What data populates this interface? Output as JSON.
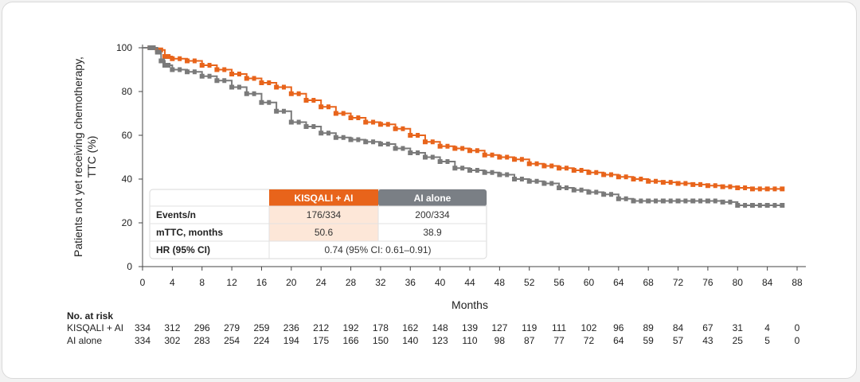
{
  "chart_data": {
    "type": "line",
    "title": "",
    "xlabel": "Months",
    "ylabel_lines": [
      "Patients not yet receiving chemotherapy,",
      "TTC (%)"
    ],
    "xlim": [
      0,
      88
    ],
    "ylim": [
      0,
      100
    ],
    "x_ticks": [
      0,
      4,
      8,
      12,
      16,
      20,
      24,
      28,
      32,
      36,
      40,
      44,
      48,
      52,
      56,
      60,
      64,
      68,
      72,
      76,
      80,
      84,
      88
    ],
    "y_ticks": [
      0,
      20,
      40,
      60,
      80,
      100
    ],
    "series": [
      {
        "name": "KISQALI + AI",
        "color": "#e8641b",
        "x": [
          0,
          1,
          2,
          3,
          4,
          6,
          8,
          10,
          12,
          14,
          16,
          18,
          20,
          22,
          24,
          26,
          28,
          30,
          32,
          34,
          36,
          38,
          40,
          42,
          44,
          46,
          48,
          50,
          52,
          54,
          56,
          58,
          60,
          62,
          64,
          66,
          68,
          70,
          72,
          74,
          76,
          78,
          80,
          82,
          84,
          86
        ],
        "y": [
          100,
          100,
          99,
          96,
          95,
          94,
          92,
          90,
          88,
          86,
          84,
          82,
          79,
          76,
          73,
          70,
          68,
          66,
          65,
          63,
          60,
          57,
          55,
          54,
          53,
          51,
          50,
          49,
          47,
          46,
          45,
          44,
          43,
          42,
          41,
          40,
          39,
          38.5,
          38,
          37.5,
          37,
          36.5,
          36,
          35.5,
          35.5,
          35.5
        ]
      },
      {
        "name": "AI alone",
        "color": "#7a7a7a",
        "x": [
          0,
          1,
          2,
          2.5,
          3,
          4,
          6,
          8,
          10,
          12,
          14,
          16,
          18,
          20,
          22,
          24,
          26,
          28,
          30,
          32,
          34,
          36,
          38,
          40,
          42,
          44,
          46,
          48,
          50,
          52,
          54,
          56,
          58,
          60,
          62,
          64,
          66,
          68,
          70,
          72,
          74,
          76,
          78,
          80,
          82,
          84,
          86
        ],
        "y": [
          100,
          100,
          98,
          94,
          92,
          90,
          89,
          87,
          85,
          82,
          79,
          75,
          71,
          66,
          64,
          61,
          59,
          58,
          57,
          56,
          54,
          52,
          50,
          48,
          45,
          44,
          43,
          42,
          40,
          39,
          38,
          36,
          35,
          34,
          33,
          31,
          30,
          30,
          30,
          30,
          30,
          30,
          29.5,
          28,
          28,
          28,
          28
        ]
      }
    ]
  },
  "summary_table": {
    "headers": [
      "KISQALI + AI",
      "AI alone"
    ],
    "rows": [
      {
        "label": "Events/n",
        "kisqali": "176/334",
        "ai": "200/334"
      },
      {
        "label": "mTTC, months",
        "kisqali": "50.6",
        "ai": "38.9"
      },
      {
        "label": "HR (95% CI)",
        "merged": "0.74 (95% CI: 0.61–0.91)"
      }
    ],
    "colors": {
      "kisqali_head": "#e8641b",
      "ai_head": "#7a7f85",
      "kisqali_cell": "#fde7d8"
    }
  },
  "at_risk": {
    "title": "No. at risk",
    "rows": [
      {
        "label": "KISQALI + AI",
        "values": [
          334,
          312,
          296,
          279,
          259,
          236,
          212,
          192,
          178,
          162,
          148,
          139,
          127,
          119,
          111,
          102,
          96,
          89,
          84,
          67,
          31,
          4,
          0
        ]
      },
      {
        "label": "AI alone",
        "values": [
          334,
          302,
          283,
          254,
          224,
          194,
          175,
          166,
          150,
          140,
          123,
          110,
          98,
          87,
          77,
          72,
          64,
          59,
          57,
          43,
          25,
          5,
          0
        ]
      }
    ]
  }
}
